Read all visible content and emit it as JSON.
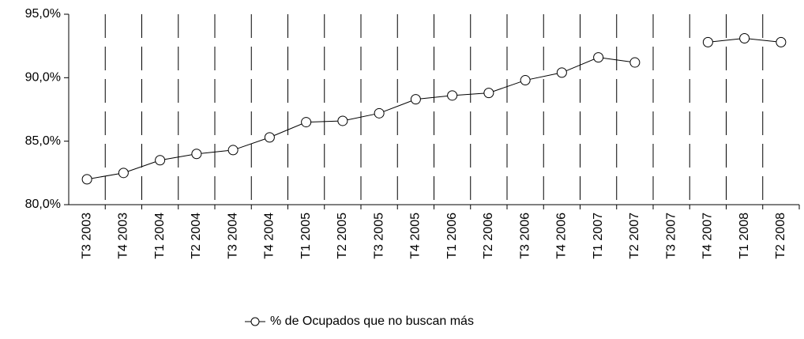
{
  "chart_data": {
    "type": "line",
    "categories": [
      "T3 2003",
      "T4 2003",
      "T1 2004",
      "T2 2004",
      "T3 2004",
      "T4 2004",
      "T1 2005",
      "T2 2005",
      "T3 2005",
      "T4 2005",
      "T1 2006",
      "T2 2006",
      "T3 2006",
      "T4 2006",
      "T1 2007",
      "T2 2007",
      "T3 2007",
      "T4 2007",
      "T1 2008",
      "T2 2008"
    ],
    "series": [
      {
        "name": "% de Ocupados que no buscan más",
        "color": "#000000",
        "values": [
          82.0,
          82.5,
          83.5,
          84.0,
          84.3,
          85.3,
          86.5,
          86.6,
          87.2,
          88.3,
          88.6,
          88.8,
          89.8,
          90.4,
          91.6,
          91.2,
          null,
          92.8,
          93.1,
          92.8
        ]
      }
    ],
    "ylim": [
      80,
      95
    ],
    "yticks": [
      {
        "value": 80,
        "label": "80,0%"
      },
      {
        "value": 85,
        "label": "85,0%"
      },
      {
        "value": 90,
        "label": "90,0%"
      },
      {
        "value": 95,
        "label": "95,0%"
      }
    ],
    "legend": "bottom"
  }
}
